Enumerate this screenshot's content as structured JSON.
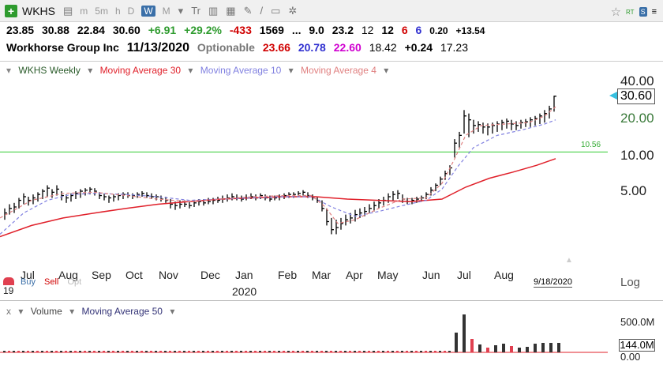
{
  "toolbar": {
    "symbol": "WKHS",
    "timeframes": [
      "m",
      "5m",
      "h",
      "D",
      "W",
      "M"
    ],
    "selected_timeframe": "W",
    "rt": "RT",
    "badge": "S"
  },
  "quote": {
    "open": "23.85",
    "high": "30.88",
    "low": "22.84",
    "last": "30.60",
    "change": "+6.91",
    "change_pct": "+29.2%",
    "f1": "-433",
    "f2": "1569",
    "f3": "...",
    "f4": "9.0",
    "f5": "23.2",
    "f6": "12",
    "f7": "12",
    "f8": "6",
    "f9": "6",
    "f10": "0.20",
    "f11": "+13.54"
  },
  "quote2": {
    "name": "Workhorse Group Inc",
    "date": "11/13/2020",
    "optionable": "Optionable",
    "v1": "23.66",
    "v2": "20.78",
    "v3": "22.60",
    "v4": "18.42",
    "v5": "+0.24",
    "v6": "17.23"
  },
  "legend": {
    "series": "WKHS Weekly",
    "ma30": "Moving Average 30",
    "ma10": "Moving Average 10",
    "ma4": "Moving Average 4"
  },
  "colors": {
    "ma30": "#e0202a",
    "ma10": "#8080e0",
    "ma4": "#e08080",
    "hline": "#33cc33",
    "up": "#000000",
    "vol_up": "#333333",
    "vol_down": "#e04050"
  },
  "yaxis": {
    "t1": "40.00",
    "t2": "20.00",
    "t3": "10.00",
    "t4": "5.00",
    "price": "30.60",
    "hline_label": "10.56"
  },
  "xaxis": {
    "months": [
      "Jul",
      "Aug",
      "Sep",
      "Oct",
      "Nov",
      "Dec",
      "Jan",
      "Feb",
      "Mar",
      "Apr",
      "May",
      "Jun",
      "Jul",
      "Aug"
    ],
    "year": "2020",
    "year_prefix": "19",
    "date": "9/18/2020"
  },
  "orders": {
    "buy": "Buy",
    "sell": "Sell",
    "opt": "Opt",
    "log": "Log"
  },
  "volume": {
    "label": "Volume",
    "ma": "Moving Average 50",
    "t1": "500.0M",
    "t2": "0.00",
    "current": "144.0M"
  },
  "chart_data": {
    "type": "candlestick",
    "title": "WKHS Weekly",
    "y_scale": "log",
    "y_ticks": [
      5,
      10,
      20,
      40
    ],
    "hline": 10.56,
    "x": [
      "Jul",
      "Aug",
      "Sep",
      "Oct",
      "Nov",
      "Dec",
      "Jan",
      "Feb",
      "Mar",
      "Apr",
      "May",
      "Jun",
      "Jul",
      "Aug"
    ],
    "last_close": 30.6
  }
}
